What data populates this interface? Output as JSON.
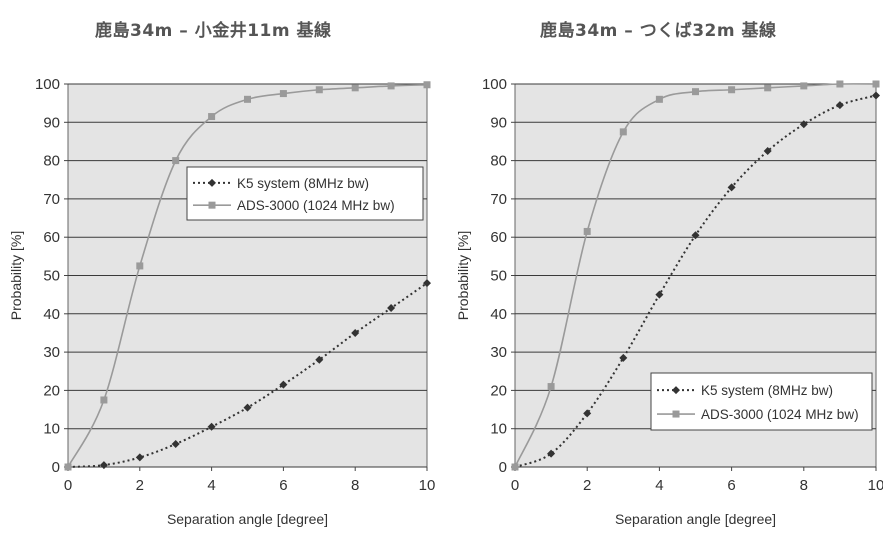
{
  "chart_data": [
    {
      "type": "line",
      "title": "鹿島34m – 小金井11m 基線",
      "xlabel": "Separation angle [degree]",
      "ylabel": "Probability [%]",
      "xlim": [
        0,
        10
      ],
      "ylim": [
        0,
        100
      ],
      "xticks": [
        "0",
        "2",
        "4",
        "6",
        "8",
        "10"
      ],
      "yticks": [
        "0",
        "10",
        "20",
        "30",
        "40",
        "50",
        "60",
        "70",
        "80",
        "90",
        "100"
      ],
      "grid": "horizontal",
      "legend_position": "upper-right",
      "series": [
        {
          "name": "K5 system (8MHz bw)",
          "style": "dotted",
          "marker": "diamond",
          "color": "#333333",
          "x": [
            0,
            1,
            2,
            3,
            4,
            5,
            6,
            7,
            8,
            9,
            10
          ],
          "y": [
            0,
            0.5,
            2.5,
            6,
            10.5,
            15.5,
            21.5,
            28,
            35,
            41.5,
            48
          ]
        },
        {
          "name": "ADS-3000 (1024 MHz bw)",
          "style": "solid",
          "marker": "square",
          "color": "#9a9a9a",
          "x": [
            0,
            1,
            2,
            3,
            4,
            5,
            6,
            7,
            8,
            9,
            10
          ],
          "y": [
            0,
            17.5,
            52.5,
            80,
            91.5,
            96,
            97.5,
            98.5,
            99,
            99.5,
            99.8
          ]
        }
      ]
    },
    {
      "type": "line",
      "title": "鹿島34m – つくば32m 基線",
      "xlabel": "Separation angle [degree]",
      "ylabel": "Probability [%]",
      "xlim": [
        0,
        10
      ],
      "ylim": [
        0,
        100
      ],
      "xticks": [
        "0",
        "2",
        "4",
        "6",
        "8",
        "10"
      ],
      "yticks": [
        "0",
        "10",
        "20",
        "30",
        "40",
        "50",
        "60",
        "70",
        "80",
        "90",
        "100"
      ],
      "grid": "horizontal",
      "legend_position": "lower-right",
      "series": [
        {
          "name": "K5 system (8MHz bw)",
          "style": "dotted",
          "marker": "diamond",
          "color": "#333333",
          "x": [
            0,
            1,
            2,
            3,
            4,
            5,
            6,
            7,
            8,
            9,
            10
          ],
          "y": [
            0,
            3.5,
            14,
            28.5,
            45,
            60.5,
            73,
            82.5,
            89.5,
            94.5,
            97
          ]
        },
        {
          "name": "ADS-3000 (1024 MHz bw)",
          "style": "solid",
          "marker": "square",
          "color": "#9a9a9a",
          "x": [
            0,
            1,
            2,
            3,
            4,
            5,
            6,
            7,
            8,
            9,
            10
          ],
          "y": [
            0,
            21,
            61.5,
            87.5,
            96,
            98,
            98.5,
            99,
            99.5,
            100,
            100
          ]
        }
      ]
    }
  ]
}
